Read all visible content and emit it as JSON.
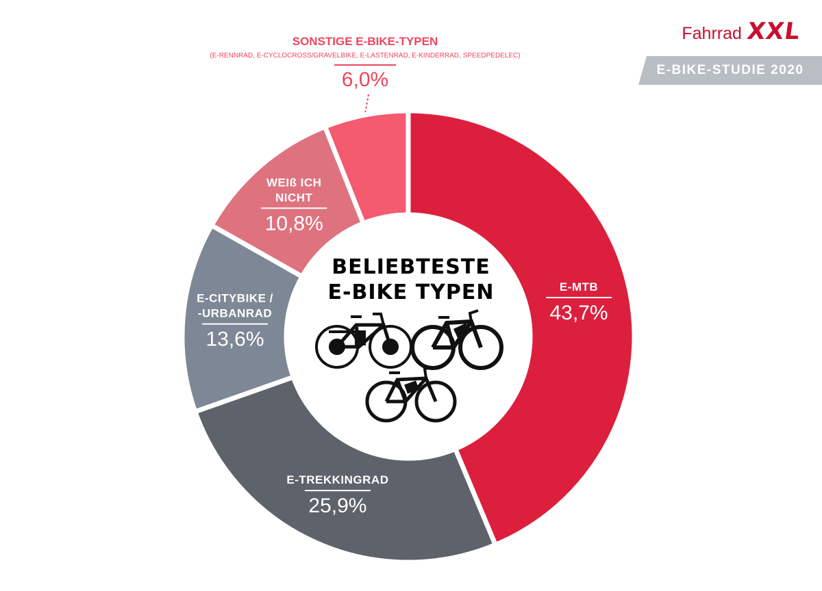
{
  "brand": {
    "name": "Fahrrad",
    "mark": "XXL"
  },
  "badge": "E-BIKE-STUDIE 2020",
  "center_title": {
    "line1": "BELIEBTESTE",
    "line2": "E-BIKE TYPEN"
  },
  "colors": {
    "e_mtb": "#dc1f3d",
    "e_trekking": "#5e626a",
    "e_city": "#7e8795",
    "unknown": "#de737f",
    "other": "#f45a70",
    "accent_text": "#f0455e"
  },
  "chart_data": {
    "type": "pie",
    "title": "BELIEBTESTE E-BIKE TYPEN",
    "donut": true,
    "series": [
      {
        "name": "E-MTB",
        "value": 43.7,
        "label_value": "43,7%"
      },
      {
        "name": "E-TREKKINGRAD",
        "value": 25.9,
        "label_value": "25,9%"
      },
      {
        "name": "E-CITYBIKE / -URBANRAD",
        "label_lines": [
          "E-CITYBIKE /",
          "-URBANRAD"
        ],
        "value": 13.6,
        "label_value": "13,6%"
      },
      {
        "name": "WEIß ICH NICHT",
        "label_lines": [
          "WEIß ICH",
          "NICHT"
        ],
        "value": 10.8,
        "label_value": "10,8%"
      },
      {
        "name": "SONSTIGE E-BIKE-TYPEN",
        "value": 6.0,
        "label_value": "6,0%",
        "note": "(E-RENNRAD, E-CYCLOCROSS/GRAVELBIKE, E-LASTENRAD, E-KINDERRAD, SPEEDPEDELEC)"
      }
    ]
  },
  "icons": [
    "trekking-bike-icon",
    "mountain-bike-icon",
    "hardtail-bike-icon"
  ]
}
